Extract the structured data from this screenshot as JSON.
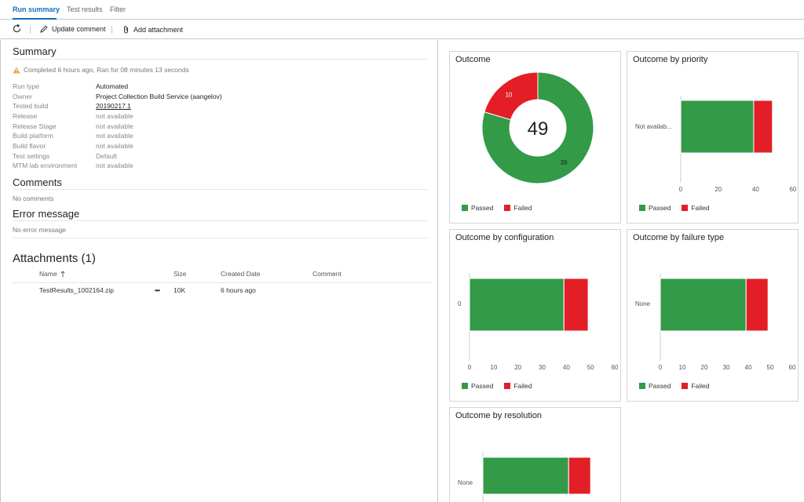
{
  "tabs": [
    {
      "label": "Run summary",
      "active": true
    },
    {
      "label": "Test results",
      "active": false
    },
    {
      "label": "Filter",
      "active": false
    }
  ],
  "toolbar": {
    "refresh_icon": "refresh-icon",
    "update_comment": "Update comment",
    "add_attachment": "Add attachment"
  },
  "summary": {
    "title": "Summary",
    "status": "Completed 6 hours ago, Ran for 08 minutes 13 seconds",
    "properties": [
      {
        "name": "Run type",
        "value": "Automated"
      },
      {
        "name": "Owner",
        "value": "Project Collection Build Service (aangelov)"
      },
      {
        "name": "Tested build",
        "value": "20190217.1"
      },
      {
        "name": "Release",
        "value": "not available"
      },
      {
        "name": "Release Stage",
        "value": "not available"
      },
      {
        "name": "Build platform",
        "value": "not available"
      },
      {
        "name": "Build flavor",
        "value": "not available"
      },
      {
        "name": "Test settings",
        "value": "Default"
      },
      {
        "name": "MTM lab environment",
        "value": "not available"
      }
    ]
  },
  "comments": {
    "title": "Comments",
    "text": "No comments"
  },
  "error": {
    "title": "Error message",
    "text": "No error message"
  },
  "attachments": {
    "title": "Attachments (1)",
    "columns": {
      "name": "Name",
      "size": "Size",
      "created": "Created Date",
      "comment": "Comment"
    },
    "rows": [
      {
        "name": "TestResults_1002164.zip",
        "more": "•••",
        "size": "10K",
        "created": "6 hours ago",
        "comment": ""
      }
    ]
  },
  "colors": {
    "passed": "#339a48",
    "failed": "#e31e26"
  },
  "legend": {
    "passed": "Passed",
    "failed": "Failed"
  },
  "chart_data": [
    {
      "type": "pie",
      "title": "Outcome",
      "center_label": "49",
      "slices": [
        {
          "name": "Passed",
          "value": 39
        },
        {
          "name": "Failed",
          "value": 10
        }
      ]
    },
    {
      "type": "bar",
      "title": "Outcome by priority",
      "categories": [
        "Not availab..."
      ],
      "series": [
        {
          "name": "Passed",
          "values": [
            39
          ]
        },
        {
          "name": "Failed",
          "values": [
            10
          ]
        }
      ],
      "xticks": [
        0,
        20,
        40,
        60
      ],
      "xlim": [
        0,
        60
      ]
    },
    {
      "type": "bar",
      "title": "Outcome by configuration",
      "categories": [
        "0"
      ],
      "series": [
        {
          "name": "Passed",
          "values": [
            39
          ]
        },
        {
          "name": "Failed",
          "values": [
            10
          ]
        }
      ],
      "xticks": [
        0,
        10,
        20,
        30,
        40,
        50,
        60
      ],
      "xlim": [
        0,
        60
      ]
    },
    {
      "type": "bar",
      "title": "Outcome by failure type",
      "categories": [
        "None"
      ],
      "series": [
        {
          "name": "Passed",
          "values": [
            39
          ]
        },
        {
          "name": "Failed",
          "values": [
            10
          ]
        }
      ],
      "xticks": [
        0,
        10,
        20,
        30,
        40,
        50,
        60
      ],
      "xlim": [
        0,
        60
      ]
    },
    {
      "type": "bar",
      "title": "Outcome by resolution",
      "categories": [
        "None"
      ],
      "series": [
        {
          "name": "Passed",
          "values": [
            39
          ]
        },
        {
          "name": "Failed",
          "values": [
            10
          ]
        }
      ],
      "xlim": [
        0,
        60
      ]
    }
  ]
}
